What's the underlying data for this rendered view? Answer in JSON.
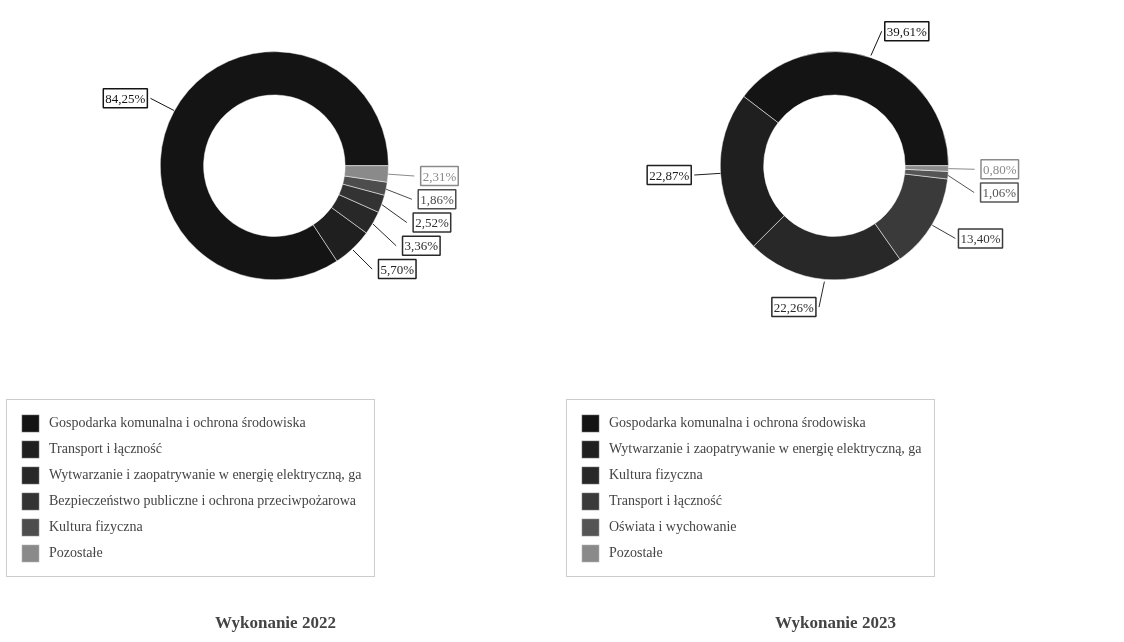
{
  "chart_data": [
    {
      "type": "donut",
      "title": "Wykonanie 2022",
      "categories": [
        "Gospodarka komunalna i ochrona środowiska",
        "Transport i łączność",
        "Wytwarzanie i zaopatrywanie w energię elektryczną, ga",
        "Bezpieczeństwo publiczne i ochrona przeciwpożarowa",
        "Kultura fizyczna",
        "Pozostałe"
      ],
      "values": [
        84.25,
        5.7,
        3.36,
        2.52,
        1.86,
        2.31
      ],
      "colors": [
        "#141414",
        "#1f1f1f",
        "#282828",
        "#333333",
        "#4d4d4d",
        "#8a8a8a"
      ],
      "value_labels": [
        "84,25%",
        "5,70%",
        "3,36%",
        "2,52%",
        "1,86%",
        "2,31%"
      ],
      "legend": "bottom"
    },
    {
      "type": "donut",
      "title": "Wykonanie 2023",
      "categories": [
        "Gospodarka komunalna i ochrona środowiska",
        "Wytwarzanie i zaopatrywanie w energię elektryczną, ga",
        "Kultura fizyczna",
        "Transport i łączność",
        "Oświata i wychowanie",
        "Pozostałe"
      ],
      "values": [
        39.61,
        22.87,
        22.26,
        13.4,
        1.06,
        0.8
      ],
      "colors": [
        "#141414",
        "#1f1f1f",
        "#282828",
        "#3a3a3a",
        "#555555",
        "#8a8a8a"
      ],
      "value_labels": [
        "39,61%",
        "22,87%",
        "22,26%",
        "13,40%",
        "1,06%",
        "0,80%"
      ],
      "legend": "bottom"
    }
  ]
}
